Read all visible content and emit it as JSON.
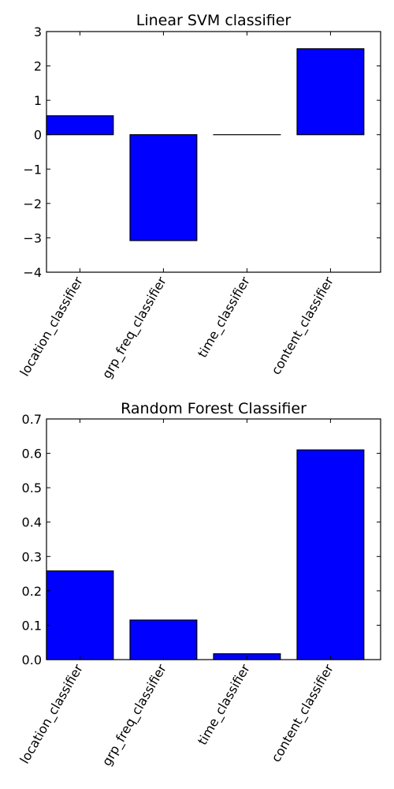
{
  "chart_data": [
    {
      "type": "bar",
      "title": "Linear SVM classifier",
      "xlabel": "",
      "ylabel": "",
      "categories": [
        "location_classifier",
        "grp_freq_classifier",
        "time_classifier",
        "content_classifier"
      ],
      "values": [
        0.55,
        -3.08,
        0.0,
        2.5
      ],
      "ylim": [
        -4,
        3
      ],
      "yticks": [
        3,
        2,
        1,
        0,
        -1,
        -2,
        -3,
        -4
      ],
      "ytick_labels": [
        "3",
        "2",
        "1",
        "0",
        "−1",
        "−2",
        "−3",
        "−4"
      ],
      "bar_color": "#0000ff",
      "grid": false,
      "legend": "none"
    },
    {
      "type": "bar",
      "title": "Random Forest Classifier",
      "xlabel": "",
      "ylabel": "",
      "categories": [
        "location_classifier",
        "grp_freq_classifier",
        "time_classifier",
        "content_classifier"
      ],
      "values": [
        0.258,
        0.115,
        0.017,
        0.61
      ],
      "ylim": [
        0,
        0.7
      ],
      "yticks": [
        0.7,
        0.6,
        0.5,
        0.4,
        0.3,
        0.2,
        0.1,
        0.0
      ],
      "ytick_labels": [
        "0.7",
        "0.6",
        "0.5",
        "0.4",
        "0.3",
        "0.2",
        "0.1",
        "0.0"
      ],
      "bar_color": "#0000ff",
      "grid": false,
      "legend": "none"
    }
  ]
}
